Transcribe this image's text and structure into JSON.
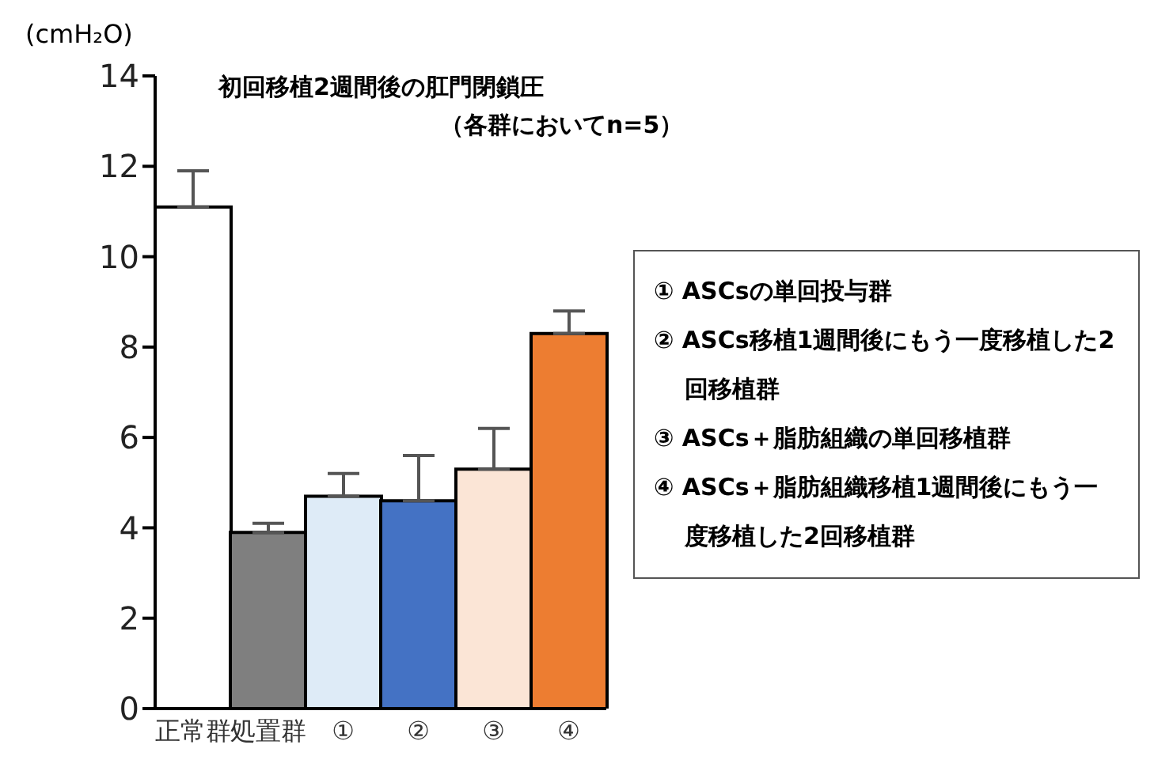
{
  "chart_data": {
    "type": "bar",
    "title": "初回移植2週間後の肛門閉鎖圧",
    "subtitle": "（各群においてn=5）",
    "ylabel": "(cmH₂O)",
    "categories": [
      "正常群",
      "処置群",
      "①",
      "②",
      "③",
      "④"
    ],
    "values": [
      11.1,
      3.9,
      4.7,
      4.6,
      5.3,
      8.3
    ],
    "colors": [
      "#ffffff",
      "#7f7f7f",
      "#deebf7",
      "#4472c4",
      "#fbe5d6",
      "#ed7d31"
    ],
    "errors": [
      [
        11.1,
        11.9
      ],
      [
        3.9,
        4.1
      ],
      [
        4.7,
        5.2
      ],
      [
        4.6,
        5.6
      ],
      [
        5.3,
        6.2
      ],
      [
        8.3,
        8.8
      ]
    ],
    "ylim": [
      0,
      14
    ],
    "yticks": [
      0,
      2,
      4,
      6,
      8,
      10,
      12,
      14
    ],
    "grid": false,
    "annotations": [
      "① ASCsの単回投与群",
      "② ASCs移植1週間後にもう一度移植した2回移植群",
      "③ ASCs＋脂肪組織の単回移植群",
      "④ ASCs＋脂肪組織移植1週間後にもう一度移植した2回移植群"
    ]
  }
}
